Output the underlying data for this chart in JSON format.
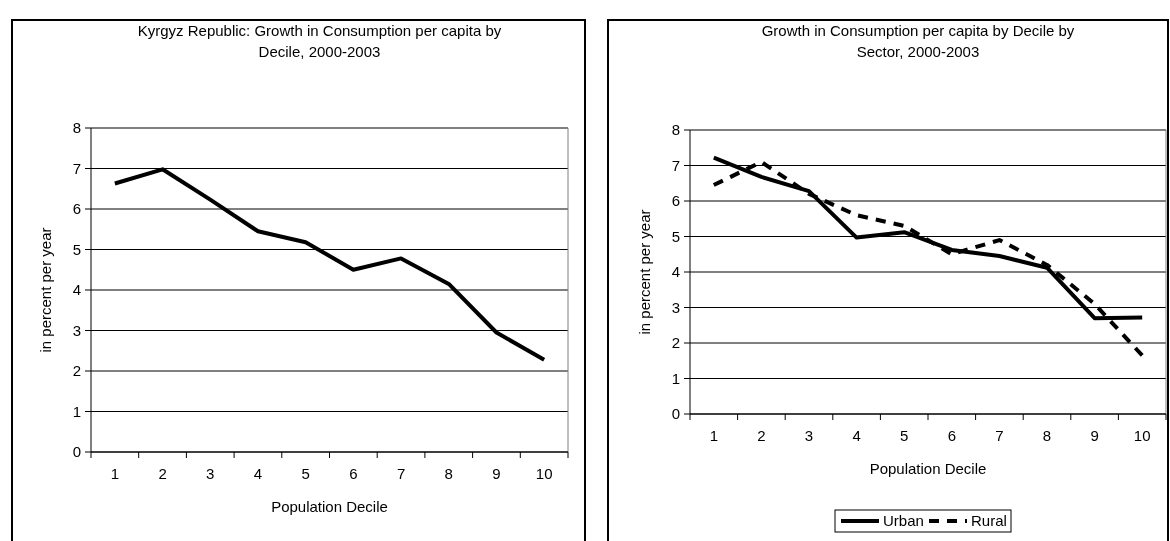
{
  "chart_data": [
    {
      "type": "line",
      "title": "Kyrgyz Republic: Growth in Consumption per capita by Decile, 2000-2003",
      "xlabel": "Population Decile",
      "ylabel": "in percent per year",
      "categories": [
        "1",
        "2",
        "3",
        "4",
        "5",
        "6",
        "7",
        "8",
        "9",
        "10"
      ],
      "series": [
        {
          "color": "#000000",
          "values": [
            6.63,
            6.98,
            6.23,
            5.45,
            5.18,
            4.5,
            4.78,
            4.15,
            2.95,
            2.28
          ]
        }
      ],
      "ylim": [
        0,
        8
      ],
      "yticks": [
        0,
        1,
        2,
        3,
        4,
        5,
        6,
        7,
        8
      ],
      "grid": "y",
      "marker": "none",
      "line_style": "solid"
    },
    {
      "type": "line",
      "title": "Growth in Consumption per capita by Decile by Sector, 2000-2003",
      "xlabel": "Population Decile",
      "ylabel": "in percent per year",
      "categories": [
        "1",
        "2",
        "3",
        "4",
        "5",
        "6",
        "7",
        "8",
        "9",
        "10"
      ],
      "series": [
        {
          "name": "Urban",
          "color": "#000000",
          "line_style": "solid",
          "values": [
            7.22,
            6.68,
            6.28,
            4.97,
            5.12,
            4.62,
            4.45,
            4.12,
            2.7,
            2.72
          ]
        },
        {
          "name": "Rural",
          "color": "#000000",
          "line_style": "dashed",
          "values": [
            6.45,
            7.1,
            6.2,
            5.6,
            5.3,
            4.5,
            4.9,
            4.2,
            3.1,
            1.65
          ]
        }
      ],
      "ylim": [
        0,
        8
      ],
      "yticks": [
        0,
        1,
        2,
        3,
        4,
        5,
        6,
        7,
        8
      ],
      "grid": "y",
      "marker": "none",
      "legend": "bottom"
    }
  ]
}
